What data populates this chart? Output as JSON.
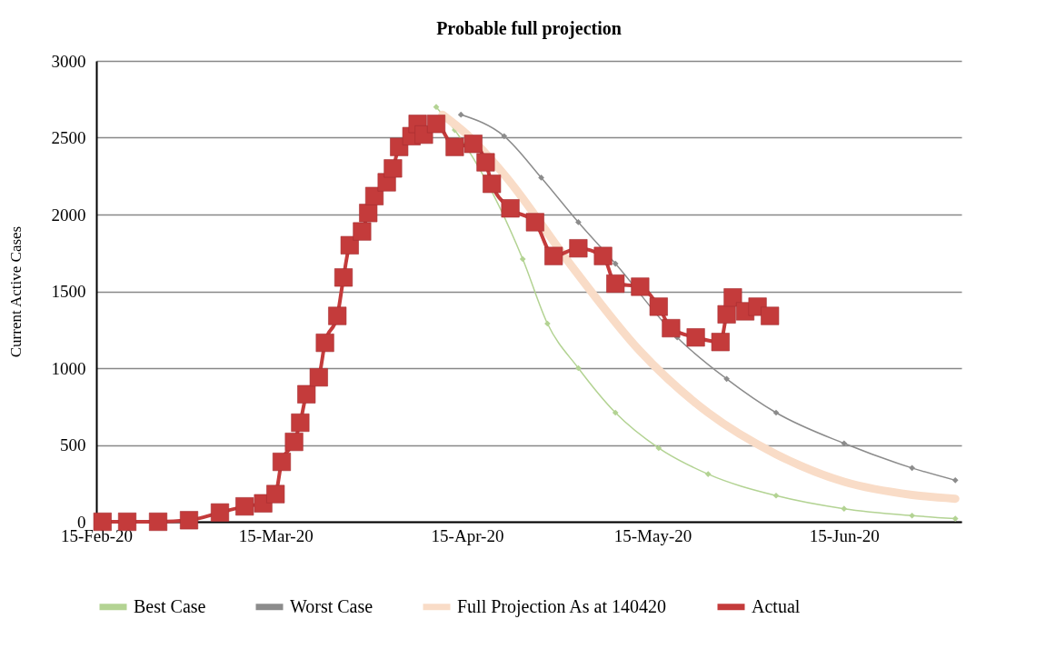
{
  "chart_data": {
    "type": "line",
    "title": "Probable full projection",
    "ylabel": "Current Active Cases",
    "xlim": [
      "2020-02-15",
      "2020-07-04"
    ],
    "ylim": [
      0,
      3000
    ],
    "yticks": [
      0,
      500,
      1000,
      1500,
      2000,
      2500,
      3000
    ],
    "xticks": [
      {
        "value": "2020-02-15",
        "label": "15-Feb-20"
      },
      {
        "value": "2020-03-15",
        "label": "15-Mar-20"
      },
      {
        "value": "2020-04-15",
        "label": "15-Apr-20"
      },
      {
        "value": "2020-05-15",
        "label": "15-May-20"
      },
      {
        "value": "2020-06-15",
        "label": "15-Jun-20"
      }
    ],
    "grid": "y",
    "legend": "bottom",
    "series": [
      {
        "name": "Best Case",
        "color": "#b3d393",
        "marker": "diamond",
        "x": [
          "2020-04-10",
          "2020-04-13",
          "2020-04-24",
          "2020-04-28",
          "2020-05-03",
          "2020-05-09",
          "2020-05-16",
          "2020-05-24",
          "2020-06-04",
          "2020-06-15",
          "2020-06-26",
          "2020-07-03"
        ],
        "values": [
          2700,
          2550,
          1710,
          1290,
          1000,
          710,
          480,
          310,
          170,
          85,
          40,
          20
        ]
      },
      {
        "name": "Worst Case",
        "color": "#8c8c8c",
        "marker": "diamond",
        "x": [
          "2020-04-14",
          "2020-04-21",
          "2020-04-27",
          "2020-05-03",
          "2020-05-09",
          "2020-05-19",
          "2020-05-27",
          "2020-06-04",
          "2020-06-15",
          "2020-06-26",
          "2020-07-03"
        ],
        "values": [
          2650,
          2510,
          2240,
          1950,
          1680,
          1200,
          930,
          710,
          510,
          350,
          270
        ]
      },
      {
        "name": "Full Projection As at 140420",
        "color": "#f9dcc7",
        "marker": "none",
        "x": [
          "2020-04-11",
          "2020-04-15",
          "2020-04-21",
          "2020-05-02",
          "2020-05-13",
          "2020-05-24",
          "2020-06-04",
          "2020-06-15",
          "2020-06-26",
          "2020-07-03"
        ],
        "values": [
          2650,
          2520,
          2260,
          1660,
          1110,
          710,
          440,
          260,
          175,
          150
        ]
      },
      {
        "name": "Actual",
        "color": "#c43b3b",
        "marker": "square",
        "x": [
          "2020-02-16",
          "2020-02-20",
          "2020-02-25",
          "2020-03-01",
          "2020-03-06",
          "2020-03-10",
          "2020-03-13",
          "2020-03-15",
          "2020-03-16",
          "2020-03-18",
          "2020-03-19",
          "2020-03-20",
          "2020-03-22",
          "2020-03-23",
          "2020-03-25",
          "2020-03-26",
          "2020-03-27",
          "2020-03-29",
          "2020-03-30",
          "2020-03-31",
          "2020-04-02",
          "2020-04-03",
          "2020-04-04",
          "2020-04-06",
          "2020-04-07",
          "2020-04-08",
          "2020-04-10",
          "2020-04-13",
          "2020-04-16",
          "2020-04-18",
          "2020-04-19",
          "2020-04-22",
          "2020-04-26",
          "2020-04-29",
          "2020-05-03",
          "2020-05-07",
          "2020-05-09",
          "2020-05-13",
          "2020-05-16",
          "2020-05-18",
          "2020-05-22",
          "2020-05-26",
          "2020-05-27",
          "2020-05-28",
          "2020-05-30",
          "2020-06-01",
          "2020-06-03"
        ],
        "values": [
          0,
          0,
          0,
          10,
          60,
          100,
          120,
          180,
          390,
          520,
          645,
          830,
          940,
          1165,
          1340,
          1590,
          1800,
          1890,
          2010,
          2120,
          2210,
          2300,
          2440,
          2510,
          2590,
          2520,
          2590,
          2440,
          2460,
          2340,
          2200,
          2040,
          1950,
          1730,
          1780,
          1730,
          1550,
          1530,
          1400,
          1260,
          1200,
          1170,
          1350,
          1460,
          1370,
          1400,
          1340
        ]
      }
    ]
  }
}
